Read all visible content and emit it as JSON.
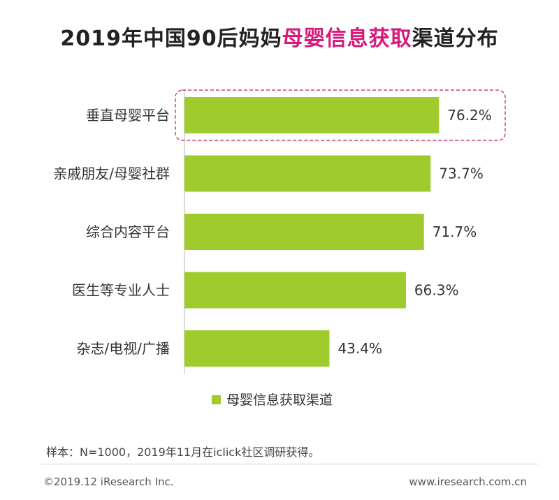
{
  "title": {
    "prefix": "2019年中国90后妈妈",
    "highlight": "母婴信息获取",
    "suffix": "渠道分布"
  },
  "colors": {
    "bar": "#9fcb2c",
    "highlight_title": "#d6197a",
    "highlight_box": "#c2185b",
    "axis": "#cfcfcf",
    "text": "#333333"
  },
  "chart_data": {
    "type": "bar",
    "orientation": "horizontal",
    "categories": [
      "垂直母婴平台",
      "亲戚朋友/母婴社群",
      "综合内容平台",
      "医生等专业人士",
      "杂志/电视/广播"
    ],
    "series": [
      {
        "name": "母婴信息获取渠道",
        "values": [
          76.2,
          73.7,
          71.7,
          66.3,
          43.4
        ]
      }
    ],
    "value_labels": [
      "76.2%",
      "73.7%",
      "71.7%",
      "66.3%",
      "43.4%"
    ],
    "xlim": [
      0,
      100
    ],
    "highlighted_category": "垂直母婴平台",
    "legend_position": "bottom",
    "grid": false
  },
  "footnote": "样本：N=1000，2019年11月在iclick社区调研获得。",
  "copyright": "©2019.12 iResearch Inc.",
  "website": "www.iresearch.com.cn"
}
